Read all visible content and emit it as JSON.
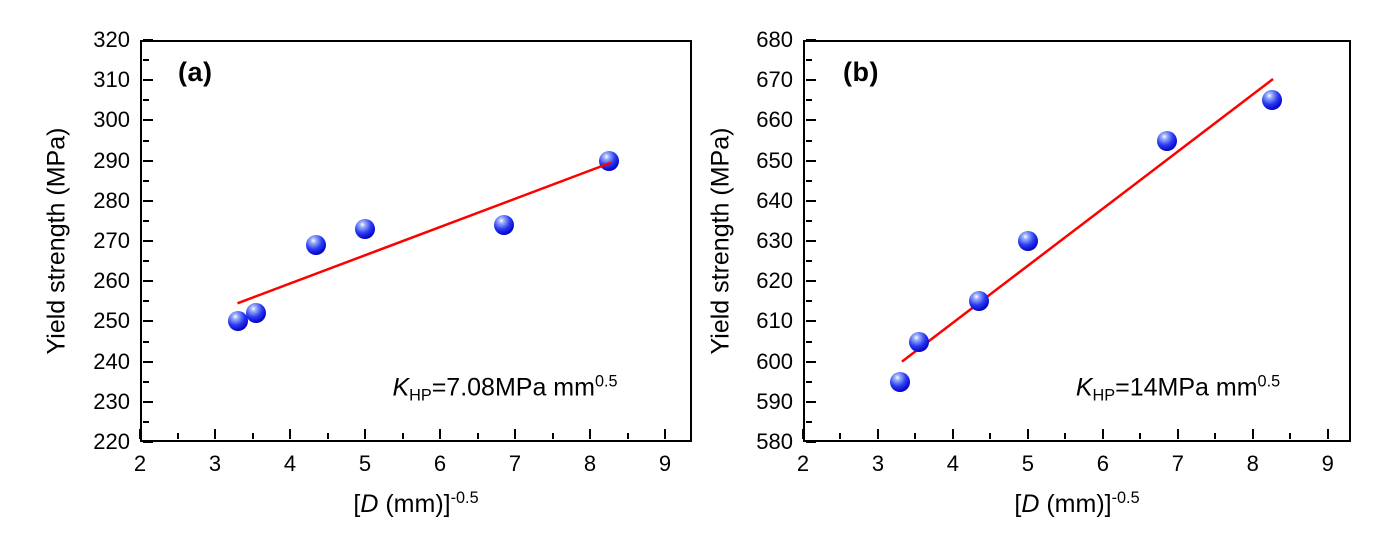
{
  "figure": {
    "background_color": "#ffffff",
    "axis_color": "#000000",
    "text_color": "#000000"
  },
  "chart_data": [
    {
      "type": "scatter",
      "panel_label": "(a)",
      "ylabel": "Yield strength (MPa)",
      "xlabel_parts": {
        "bracket": "[",
        "variable": "D",
        "rest": " (mm)]",
        "superscript": "-0.5"
      },
      "xlim": [
        2,
        9.36
      ],
      "ylim": [
        220,
        320
      ],
      "x_ticks": [
        2,
        3,
        4,
        5,
        6,
        7,
        8,
        9
      ],
      "x_minor_ticks": [
        2.5,
        3.5,
        4.5,
        5.5,
        6.5,
        7.5,
        8.5
      ],
      "y_ticks": [
        220,
        230,
        240,
        250,
        260,
        270,
        280,
        290,
        300,
        310,
        320
      ],
      "y_minor_ticks": [
        225,
        235,
        245,
        255,
        265,
        275,
        285,
        295,
        305,
        315
      ],
      "grid": false,
      "legend": false,
      "x": [
        3.3,
        3.55,
        4.35,
        5.0,
        6.85,
        8.25
      ],
      "y": [
        250,
        252,
        269,
        273,
        274,
        290
      ],
      "fit_line": {
        "x1": 3.3,
        "y1": 254.5,
        "x2": 8.28,
        "y2": 289.5
      },
      "annotation": {
        "symbol": "K",
        "subscript": "HP",
        "value": "=7.08MPa mm",
        "superscript": "0.5"
      },
      "marker_color": "#1414e6",
      "line_color": "#ff0000",
      "line_on_top": true
    },
    {
      "type": "scatter",
      "panel_label": "(b)",
      "ylabel": "Yield strength (MPa)",
      "xlabel_parts": {
        "bracket": "[",
        "variable": "D",
        "rest": " (mm)]",
        "superscript": "-0.5"
      },
      "xlim": [
        2,
        9.31
      ],
      "ylim": [
        580,
        680
      ],
      "x_ticks": [
        2,
        3,
        4,
        5,
        6,
        7,
        8,
        9
      ],
      "x_minor_ticks": [
        2.5,
        3.5,
        4.5,
        5.5,
        6.5,
        7.5,
        8.5
      ],
      "y_ticks": [
        580,
        590,
        600,
        610,
        620,
        630,
        640,
        650,
        660,
        670,
        680
      ],
      "y_minor_ticks": [
        585,
        595,
        605,
        615,
        625,
        635,
        645,
        655,
        665,
        675
      ],
      "grid": false,
      "legend": false,
      "x": [
        3.3,
        3.55,
        4.35,
        5.0,
        6.85,
        8.25
      ],
      "y": [
        595,
        605,
        615,
        630,
        655,
        665
      ],
      "fit_line": {
        "x1": 3.32,
        "y1": 600,
        "x2": 8.27,
        "y2": 670.3
      },
      "annotation": {
        "symbol": "K",
        "subscript": "HP",
        "value": "=14MPa mm",
        "superscript": "0.5"
      },
      "marker_color": "#1414e6",
      "line_color": "#ff0000",
      "line_on_top": false
    }
  ]
}
